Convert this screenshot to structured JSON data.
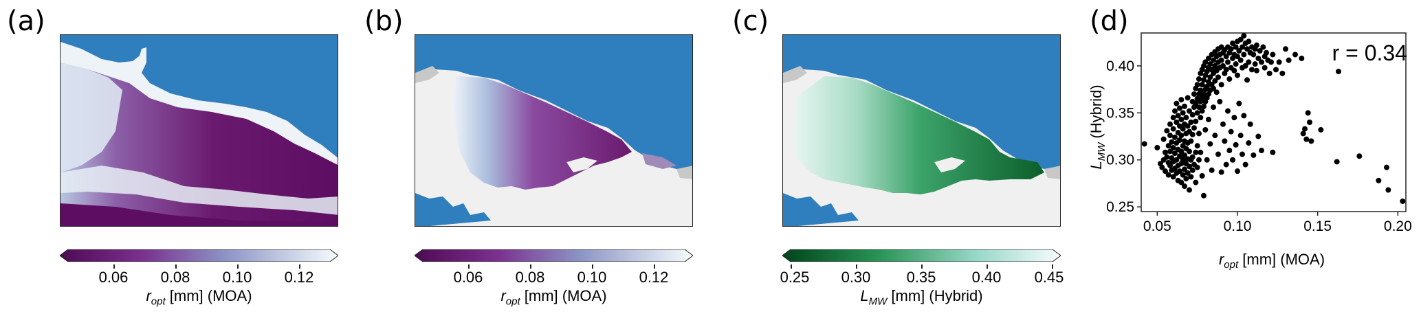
{
  "panels": {
    "a": {
      "letter": "(a)",
      "colorbar": {
        "label_main": "r",
        "label_sub": "opt",
        "label_rest": " [mm] (MOA)",
        "ticks": [
          "0.06",
          "0.08",
          "0.10",
          "0.12"
        ]
      }
    },
    "b": {
      "letter": "(b)",
      "colorbar": {
        "label_main": "r",
        "label_sub": "opt",
        "label_rest": " [mm] (MOA)",
        "ticks": [
          "0.06",
          "0.08",
          "0.10",
          "0.12"
        ]
      }
    },
    "c": {
      "letter": "(c)",
      "colorbar": {
        "label_main": "L",
        "label_sub": "MW",
        "label_rest": " [mm] (Hybrid)",
        "ticks": [
          "0.25",
          "0.30",
          "0.35",
          "0.40",
          "0.45"
        ]
      }
    },
    "d": {
      "letter": "(d)"
    }
  },
  "colors": {
    "ocean": "#2f7fbf",
    "land": "#f0f0f0",
    "rock": "#c8c8c8",
    "purple_dark": "#5e0e62",
    "purple_mid": "#8a4aa0",
    "purple_light": "#b9c9e2",
    "green_dark": "#0b5e2a",
    "green_mid": "#3ca46a",
    "green_light": "#dff3f0"
  },
  "chart_data": {
    "type": "scatter",
    "annotation": "r = 0.34",
    "xlabel_main": "r",
    "xlabel_sub": "opt",
    "xlabel_rest": " [mm] (MOA)",
    "ylabel_main": "L",
    "ylabel_sub": "MW",
    "ylabel_rest": " (Hybrid)",
    "xlim": [
      0.04,
      0.205
    ],
    "ylim": [
      0.245,
      0.435
    ],
    "xticks": [
      0.05,
      0.1,
      0.15,
      0.2
    ],
    "xtick_labels": [
      "0.05",
      "0.10",
      "0.15",
      "0.20"
    ],
    "yticks": [
      0.25,
      0.3,
      0.35,
      0.4
    ],
    "ytick_labels": [
      "0.25",
      "0.30",
      "0.35",
      "0.40"
    ],
    "points": [
      [
        0.042,
        0.317
      ],
      [
        0.05,
        0.313
      ],
      [
        0.052,
        0.296
      ],
      [
        0.053,
        0.292
      ],
      [
        0.054,
        0.3
      ],
      [
        0.054,
        0.322
      ],
      [
        0.055,
        0.308
      ],
      [
        0.055,
        0.288
      ],
      [
        0.056,
        0.331
      ],
      [
        0.056,
        0.303
      ],
      [
        0.057,
        0.315
      ],
      [
        0.057,
        0.297
      ],
      [
        0.057,
        0.284
      ],
      [
        0.058,
        0.338
      ],
      [
        0.058,
        0.326
      ],
      [
        0.058,
        0.309
      ],
      [
        0.058,
        0.294
      ],
      [
        0.059,
        0.319
      ],
      [
        0.059,
        0.302
      ],
      [
        0.059,
        0.289
      ],
      [
        0.06,
        0.345
      ],
      [
        0.06,
        0.333
      ],
      [
        0.06,
        0.313
      ],
      [
        0.06,
        0.298
      ],
      [
        0.06,
        0.282
      ],
      [
        0.061,
        0.352
      ],
      [
        0.061,
        0.324
      ],
      [
        0.061,
        0.307
      ],
      [
        0.061,
        0.291
      ],
      [
        0.062,
        0.36
      ],
      [
        0.062,
        0.34
      ],
      [
        0.062,
        0.318
      ],
      [
        0.062,
        0.3
      ],
      [
        0.062,
        0.286
      ],
      [
        0.063,
        0.347
      ],
      [
        0.063,
        0.329
      ],
      [
        0.063,
        0.311
      ],
      [
        0.063,
        0.294
      ],
      [
        0.063,
        0.278
      ],
      [
        0.064,
        0.355
      ],
      [
        0.064,
        0.336
      ],
      [
        0.064,
        0.321
      ],
      [
        0.064,
        0.304
      ],
      [
        0.064,
        0.288
      ],
      [
        0.065,
        0.364
      ],
      [
        0.065,
        0.343
      ],
      [
        0.065,
        0.326
      ],
      [
        0.065,
        0.309
      ],
      [
        0.065,
        0.296
      ],
      [
        0.065,
        0.276
      ],
      [
        0.066,
        0.35
      ],
      [
        0.066,
        0.333
      ],
      [
        0.066,
        0.315
      ],
      [
        0.066,
        0.3
      ],
      [
        0.066,
        0.284
      ],
      [
        0.067,
        0.357
      ],
      [
        0.067,
        0.338
      ],
      [
        0.067,
        0.32
      ],
      [
        0.067,
        0.305
      ],
      [
        0.067,
        0.29
      ],
      [
        0.067,
        0.272
      ],
      [
        0.068,
        0.345
      ],
      [
        0.068,
        0.328
      ],
      [
        0.068,
        0.312
      ],
      [
        0.068,
        0.296
      ],
      [
        0.068,
        0.28
      ],
      [
        0.069,
        0.366
      ],
      [
        0.069,
        0.336
      ],
      [
        0.069,
        0.318
      ],
      [
        0.069,
        0.301
      ],
      [
        0.069,
        0.286
      ],
      [
        0.07,
        0.352
      ],
      [
        0.07,
        0.33
      ],
      [
        0.07,
        0.309
      ],
      [
        0.07,
        0.293
      ],
      [
        0.07,
        0.268
      ],
      [
        0.071,
        0.34
      ],
      [
        0.071,
        0.32
      ],
      [
        0.071,
        0.3
      ],
      [
        0.071,
        0.282
      ],
      [
        0.072,
        0.362
      ],
      [
        0.072,
        0.348
      ],
      [
        0.072,
        0.327
      ],
      [
        0.072,
        0.303
      ],
      [
        0.072,
        0.289
      ],
      [
        0.073,
        0.37
      ],
      [
        0.073,
        0.356
      ],
      [
        0.073,
        0.334
      ],
      [
        0.073,
        0.295
      ],
      [
        0.074,
        0.376
      ],
      [
        0.074,
        0.36
      ],
      [
        0.074,
        0.341
      ],
      [
        0.074,
        0.308
      ],
      [
        0.074,
        0.276
      ],
      [
        0.075,
        0.38
      ],
      [
        0.075,
        0.365
      ],
      [
        0.075,
        0.35
      ],
      [
        0.075,
        0.315
      ],
      [
        0.075,
        0.292
      ],
      [
        0.076,
        0.386
      ],
      [
        0.076,
        0.37
      ],
      [
        0.076,
        0.356
      ],
      [
        0.076,
        0.328
      ],
      [
        0.076,
        0.3
      ],
      [
        0.077,
        0.392
      ],
      [
        0.077,
        0.374
      ],
      [
        0.077,
        0.362
      ],
      [
        0.077,
        0.345
      ],
      [
        0.077,
        0.308
      ],
      [
        0.078,
        0.396
      ],
      [
        0.078,
        0.38
      ],
      [
        0.078,
        0.366
      ],
      [
        0.078,
        0.352
      ],
      [
        0.078,
        0.283
      ],
      [
        0.079,
        0.4
      ],
      [
        0.079,
        0.385
      ],
      [
        0.079,
        0.37
      ],
      [
        0.079,
        0.357
      ],
      [
        0.079,
        0.262
      ],
      [
        0.08,
        0.404
      ],
      [
        0.08,
        0.39
      ],
      [
        0.08,
        0.375
      ],
      [
        0.08,
        0.362
      ],
      [
        0.08,
        0.332
      ],
      [
        0.081,
        0.394
      ],
      [
        0.081,
        0.378
      ],
      [
        0.081,
        0.366
      ],
      [
        0.081,
        0.3
      ],
      [
        0.082,
        0.408
      ],
      [
        0.082,
        0.398
      ],
      [
        0.082,
        0.383
      ],
      [
        0.082,
        0.37
      ],
      [
        0.082,
        0.343
      ],
      [
        0.083,
        0.402
      ],
      [
        0.083,
        0.388
      ],
      [
        0.083,
        0.374
      ],
      [
        0.083,
        0.317
      ],
      [
        0.084,
        0.412
      ],
      [
        0.084,
        0.396
      ],
      [
        0.084,
        0.38
      ],
      [
        0.084,
        0.289
      ],
      [
        0.085,
        0.406
      ],
      [
        0.085,
        0.392
      ],
      [
        0.085,
        0.376
      ],
      [
        0.085,
        0.356
      ],
      [
        0.086,
        0.415
      ],
      [
        0.086,
        0.4
      ],
      [
        0.086,
        0.384
      ],
      [
        0.086,
        0.326
      ],
      [
        0.087,
        0.41
      ],
      [
        0.087,
        0.395
      ],
      [
        0.087,
        0.372
      ],
      [
        0.088,
        0.418
      ],
      [
        0.088,
        0.404
      ],
      [
        0.088,
        0.388
      ],
      [
        0.088,
        0.306
      ],
      [
        0.089,
        0.412
      ],
      [
        0.089,
        0.398
      ],
      [
        0.089,
        0.362
      ],
      [
        0.09,
        0.42
      ],
      [
        0.09,
        0.406
      ],
      [
        0.09,
        0.38
      ],
      [
        0.09,
        0.287
      ],
      [
        0.091,
        0.414
      ],
      [
        0.091,
        0.4
      ],
      [
        0.091,
        0.338
      ],
      [
        0.092,
        0.417
      ],
      [
        0.092,
        0.392
      ],
      [
        0.092,
        0.32
      ],
      [
        0.093,
        0.41
      ],
      [
        0.093,
        0.396
      ],
      [
        0.093,
        0.295
      ],
      [
        0.094,
        0.42
      ],
      [
        0.094,
        0.404
      ],
      [
        0.094,
        0.352
      ],
      [
        0.095,
        0.414
      ],
      [
        0.095,
        0.386
      ],
      [
        0.095,
        0.31
      ],
      [
        0.096,
        0.418
      ],
      [
        0.096,
        0.398
      ],
      [
        0.096,
        0.33
      ],
      [
        0.097,
        0.424
      ],
      [
        0.097,
        0.408
      ],
      [
        0.097,
        0.3
      ],
      [
        0.098,
        0.412
      ],
      [
        0.098,
        0.395
      ],
      [
        0.098,
        0.345
      ],
      [
        0.099,
        0.42
      ],
      [
        0.099,
        0.402
      ],
      [
        0.099,
        0.316
      ],
      [
        0.1,
        0.426
      ],
      [
        0.1,
        0.41
      ],
      [
        0.1,
        0.39
      ],
      [
        0.1,
        0.288
      ],
      [
        0.101,
        0.416
      ],
      [
        0.101,
        0.36
      ],
      [
        0.102,
        0.428
      ],
      [
        0.102,
        0.406
      ],
      [
        0.102,
        0.326
      ],
      [
        0.103,
        0.42
      ],
      [
        0.103,
        0.398
      ],
      [
        0.103,
        0.306
      ],
      [
        0.104,
        0.432
      ],
      [
        0.104,
        0.412
      ],
      [
        0.104,
        0.347
      ],
      [
        0.105,
        0.424
      ],
      [
        0.105,
        0.4
      ],
      [
        0.105,
        0.295
      ],
      [
        0.106,
        0.418
      ],
      [
        0.106,
        0.385
      ],
      [
        0.107,
        0.426
      ],
      [
        0.107,
        0.404
      ],
      [
        0.107,
        0.318
      ],
      [
        0.108,
        0.414
      ],
      [
        0.108,
        0.338
      ],
      [
        0.109,
        0.42
      ],
      [
        0.109,
        0.396
      ],
      [
        0.11,
        0.412
      ],
      [
        0.11,
        0.305
      ],
      [
        0.111,
        0.418
      ],
      [
        0.111,
        0.402
      ],
      [
        0.112,
        0.422
      ],
      [
        0.112,
        0.395
      ],
      [
        0.113,
        0.408
      ],
      [
        0.113,
        0.325
      ],
      [
        0.114,
        0.416
      ],
      [
        0.115,
        0.404
      ],
      [
        0.115,
        0.31
      ],
      [
        0.116,
        0.42
      ],
      [
        0.117,
        0.41
      ],
      [
        0.117,
        0.398
      ],
      [
        0.118,
        0.414
      ],
      [
        0.119,
        0.406
      ],
      [
        0.12,
        0.392
      ],
      [
        0.121,
        0.404
      ],
      [
        0.122,
        0.412
      ],
      [
        0.122,
        0.308
      ],
      [
        0.124,
        0.396
      ],
      [
        0.126,
        0.404
      ],
      [
        0.128,
        0.392
      ],
      [
        0.13,
        0.418
      ],
      [
        0.132,
        0.406
      ],
      [
        0.136,
        0.412
      ],
      [
        0.14,
        0.408
      ],
      [
        0.141,
        0.328
      ],
      [
        0.142,
        0.333
      ],
      [
        0.143,
        0.322
      ],
      [
        0.144,
        0.35
      ],
      [
        0.145,
        0.34
      ],
      [
        0.146,
        0.32
      ],
      [
        0.152,
        0.332
      ],
      [
        0.162,
        0.298
      ],
      [
        0.163,
        0.394
      ],
      [
        0.176,
        0.304
      ],
      [
        0.188,
        0.278
      ],
      [
        0.193,
        0.292
      ],
      [
        0.194,
        0.268
      ],
      [
        0.203,
        0.256
      ]
    ]
  }
}
